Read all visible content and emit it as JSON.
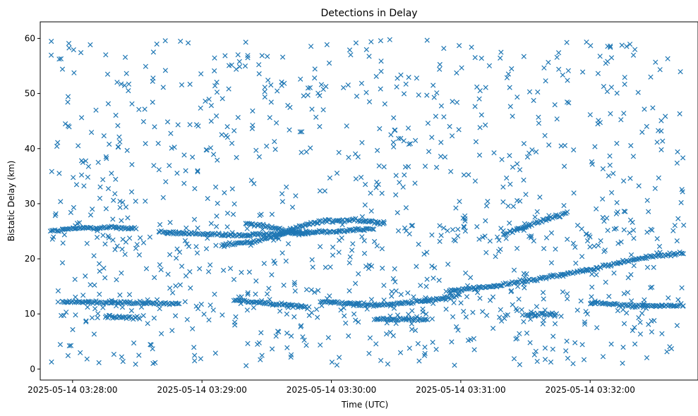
{
  "chart_data": {
    "type": "scatter",
    "title": "Detections in Delay",
    "xlabel": "Time (UTC)",
    "ylabel": "Bistatic Delay (km)",
    "marker": "x",
    "marker_color": "#1f77b4",
    "grid": false,
    "legend": "none",
    "xlim": [
      "2025-05-14 03:27:45",
      "2025-05-14 03:32:50"
    ],
    "ylim": [
      -2,
      63
    ],
    "x_ticks": [
      "2025-05-14 03:28:00",
      "2025-05-14 03:29:00",
      "2025-05-14 03:30:00",
      "2025-05-14 03:31:00",
      "2025-05-14 03:32:00"
    ],
    "y_ticks": [
      0,
      10,
      20,
      30,
      40,
      50,
      60
    ],
    "data_time_range": [
      "2025-05-14 03:27:50",
      "2025-05-14 03:32:44"
    ],
    "tracks": [
      {
        "points": [
          [
            "2025-05-14 03:27:50",
            25.0
          ],
          [
            "2025-05-14 03:28:05",
            25.6
          ],
          [
            "2025-05-14 03:28:18",
            25.7
          ],
          [
            "2025-05-14 03:28:30",
            25.5
          ]
        ]
      },
      {
        "points": [
          [
            "2025-05-14 03:28:40",
            24.8
          ],
          [
            "2025-05-14 03:29:00",
            24.5
          ],
          [
            "2025-05-14 03:29:15",
            24.2
          ],
          [
            "2025-05-14 03:29:30",
            24.5
          ],
          [
            "2025-05-14 03:30:00",
            25.0
          ],
          [
            "2025-05-14 03:30:20",
            25.5
          ]
        ]
      },
      {
        "points": [
          [
            "2025-05-14 03:29:10",
            22.5
          ],
          [
            "2025-05-14 03:29:25",
            23.2
          ],
          [
            "2025-05-14 03:29:35",
            24.2
          ],
          [
            "2025-05-14 03:29:45",
            25.8
          ],
          [
            "2025-05-14 03:29:55",
            26.8
          ],
          [
            "2025-05-14 03:30:10",
            27.0
          ],
          [
            "2025-05-14 03:30:25",
            26.5
          ]
        ]
      },
      {
        "points": [
          [
            "2025-05-14 03:29:20",
            26.5
          ],
          [
            "2025-05-14 03:29:30",
            26.0
          ],
          [
            "2025-05-14 03:29:40",
            25.0
          ],
          [
            "2025-05-14 03:29:50",
            24.5
          ]
        ]
      },
      {
        "points": [
          [
            "2025-05-14 03:27:55",
            12.2
          ],
          [
            "2025-05-14 03:28:15",
            12.1
          ],
          [
            "2025-05-14 03:28:30",
            12.0
          ],
          [
            "2025-05-14 03:28:50",
            11.8
          ]
        ]
      },
      {
        "points": [
          [
            "2025-05-14 03:28:15",
            9.5
          ],
          [
            "2025-05-14 03:28:32",
            9.3
          ]
        ]
      },
      {
        "points": [
          [
            "2025-05-14 03:29:15",
            12.5
          ],
          [
            "2025-05-14 03:29:35",
            11.8
          ],
          [
            "2025-05-14 03:29:50",
            11.2
          ]
        ]
      },
      {
        "points": [
          [
            "2025-05-14 03:29:55",
            12.2
          ],
          [
            "2025-05-14 03:30:20",
            11.6
          ],
          [
            "2025-05-14 03:30:35",
            12.0
          ],
          [
            "2025-05-14 03:30:55",
            13.0
          ],
          [
            "2025-05-14 03:31:00",
            13.6
          ]
        ]
      },
      {
        "points": [
          [
            "2025-05-14 03:30:20",
            9.0
          ],
          [
            "2025-05-14 03:30:45",
            9.0
          ]
        ]
      },
      {
        "points": [
          [
            "2025-05-14 03:30:55",
            14.2
          ],
          [
            "2025-05-14 03:31:15",
            15.0
          ],
          [
            "2025-05-14 03:31:30",
            16.0
          ],
          [
            "2025-05-14 03:31:45",
            17.0
          ],
          [
            "2025-05-14 03:32:00",
            18.0
          ],
          [
            "2025-05-14 03:32:15",
            19.5
          ],
          [
            "2025-05-14 03:32:30",
            20.5
          ],
          [
            "2025-05-14 03:32:44",
            21.0
          ]
        ]
      },
      {
        "points": [
          [
            "2025-05-14 03:31:30",
            9.8
          ],
          [
            "2025-05-14 03:31:45",
            10.0
          ]
        ]
      },
      {
        "points": [
          [
            "2025-05-14 03:32:00",
            12.0
          ],
          [
            "2025-05-14 03:32:20",
            11.5
          ],
          [
            "2025-05-14 03:32:44",
            11.5
          ]
        ]
      },
      {
        "points": [
          [
            "2025-05-14 03:31:20",
            24.5
          ],
          [
            "2025-05-14 03:31:35",
            26.5
          ],
          [
            "2025-05-14 03:31:50",
            28.5
          ]
        ]
      }
    ],
    "clutter": {
      "approx_count": 1100,
      "y_range": [
        0.5,
        59.8
      ],
      "extra_density_near_y": [
        24,
        11
      ]
    }
  }
}
